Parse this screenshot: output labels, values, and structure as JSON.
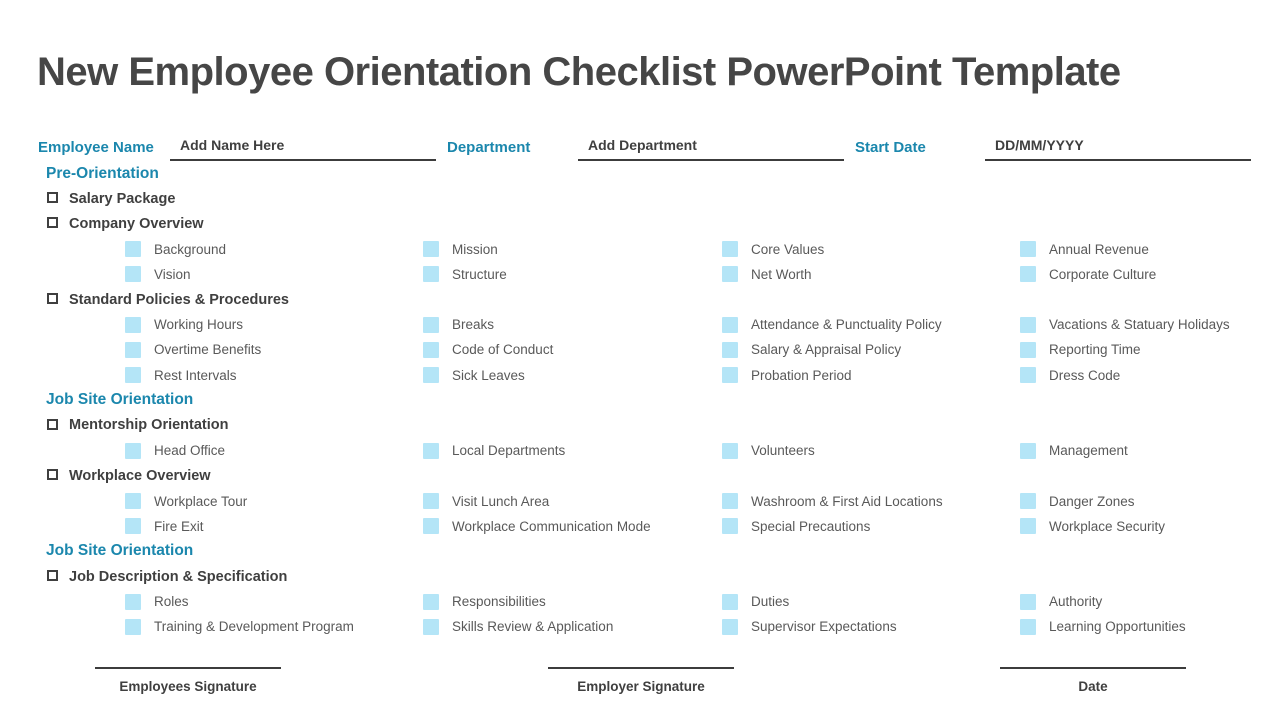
{
  "title": "New Employee Orientation Checklist PowerPoint Template",
  "colors": {
    "accent_teal": "#1b87ad",
    "title_gray": "#464646",
    "bold_text": "#3f3f3f",
    "item_text": "#595959",
    "checkbox_fill": "#b4e5f7",
    "line": "#3c3c3c"
  },
  "form_fields": [
    {
      "label": "Employee Name",
      "value": "Add Name Here"
    },
    {
      "label": "Department",
      "value": "Add Department"
    },
    {
      "label": "Start Date",
      "value": "DD/MM/YYYY"
    }
  ],
  "sections": [
    {
      "heading": "Pre-Orientation",
      "groups": [
        {
          "label": "Salary Package",
          "rows": []
        },
        {
          "label": "Company Overview",
          "rows": [
            [
              "Background",
              "Mission",
              "Core Values",
              "Annual Revenue"
            ],
            [
              "Vision",
              "Structure",
              "Net Worth",
              "Corporate Culture"
            ]
          ]
        },
        {
          "label": "Standard Policies & Procedures",
          "rows": [
            [
              "Working Hours",
              "Breaks",
              "Attendance & Punctuality Policy",
              "Vacations & Statuary Holidays"
            ],
            [
              "Overtime Benefits",
              "Code of Conduct",
              "Salary & Appraisal Policy",
              "Reporting Time"
            ],
            [
              "Rest Intervals",
              "Sick Leaves",
              "Probation Period",
              "Dress Code"
            ]
          ]
        }
      ]
    },
    {
      "heading": "Job Site Orientation",
      "groups": [
        {
          "label": "Mentorship Orientation",
          "rows": [
            [
              "Head Office",
              "Local Departments",
              "Volunteers",
              "Management"
            ]
          ]
        },
        {
          "label": "Workplace Overview",
          "rows": [
            [
              "Workplace Tour",
              "Visit Lunch Area",
              "Washroom & First Aid Locations",
              "Danger Zones"
            ],
            [
              "Fire Exit",
              "Workplace Communication Mode",
              "Special Precautions",
              "Workplace Security"
            ]
          ]
        }
      ]
    },
    {
      "heading": "Job Site Orientation",
      "groups": [
        {
          "label": "Job Description & Specification",
          "rows": [
            [
              "Roles",
              "Responsibilities",
              "Duties",
              "Authority"
            ],
            [
              "Training & Development Program",
              "Skills Review & Application",
              "Supervisor Expectations",
              "Learning Opportunities"
            ]
          ]
        }
      ]
    }
  ],
  "signatures": [
    {
      "label": "Employees Signature"
    },
    {
      "label": "Employer Signature"
    },
    {
      "label": "Date"
    }
  ]
}
